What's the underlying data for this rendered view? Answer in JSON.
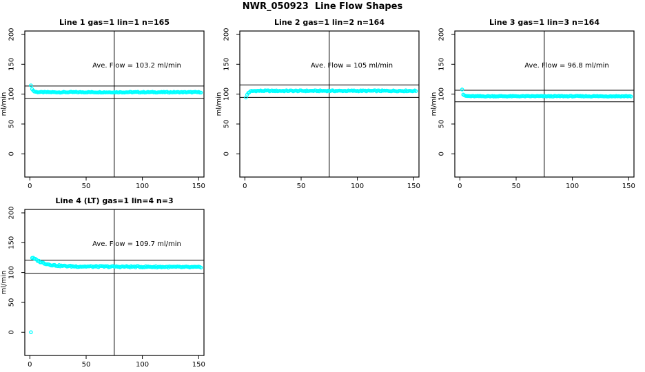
{
  "page_title": "NWR_050923  Line Flow Shapes",
  "colors": {
    "marker": "#00FFFF",
    "axis": "#000000",
    "background": "#FFFFFF"
  },
  "chart_data": [
    {
      "type": "scatter",
      "panel": "line1",
      "title": "Line 1 gas=1 lin=1 n=165",
      "annotation": "Ave. Flow =  103.2  ml/min",
      "ave_flow_ml_min": 103.2,
      "n": 165,
      "ylabel": "ml/min",
      "xticks": [
        0,
        50,
        100,
        150
      ],
      "yticks": [
        0,
        50,
        100,
        150,
        200
      ],
      "xlim": [
        -4.5,
        154.7
      ],
      "ylim": [
        -38.9,
        205.7
      ],
      "hlines": [
        113.5,
        92.9
      ],
      "vline": 75,
      "x_start": 1,
      "x_end": 152,
      "profile": [
        [
          1,
          114
        ],
        [
          2,
          109
        ],
        [
          3,
          106
        ],
        [
          4,
          104.5
        ],
        [
          6,
          103.5
        ],
        [
          10,
          103.2
        ],
        [
          152,
          103.2
        ]
      ],
      "jitter": 0.7,
      "outliers": []
    },
    {
      "type": "scatter",
      "panel": "line2",
      "title": "Line 2 gas=1 lin=2 n=164",
      "annotation": "Ave. Flow =  105  ml/min",
      "ave_flow_ml_min": 105,
      "n": 164,
      "ylabel": "ml/min",
      "xticks": [
        0,
        50,
        100,
        150
      ],
      "yticks": [
        0,
        50,
        100,
        150,
        200
      ],
      "xlim": [
        -4.5,
        154.7
      ],
      "ylim": [
        -38.9,
        205.7
      ],
      "hlines": [
        115.5,
        94.5
      ],
      "vline": 75,
      "x_start": 1,
      "x_end": 152,
      "profile": [
        [
          1,
          94
        ],
        [
          2,
          99
        ],
        [
          3,
          102
        ],
        [
          4,
          103.5
        ],
        [
          6,
          105
        ],
        [
          10,
          105.5
        ],
        [
          150,
          105.5
        ],
        [
          152,
          105.2
        ]
      ],
      "jitter": 0.9,
      "outliers": []
    },
    {
      "type": "scatter",
      "panel": "line3",
      "title": "Line 3 gas=1 lin=3 n=164",
      "annotation": "Ave. Flow =  96.8  ml/min",
      "ave_flow_ml_min": 96.8,
      "n": 164,
      "ylabel": "ml/min",
      "xticks": [
        0,
        50,
        100,
        150
      ],
      "yticks": [
        0,
        50,
        100,
        150,
        200
      ],
      "xlim": [
        -4.5,
        154.7
      ],
      "ylim": [
        -38.9,
        205.7
      ],
      "hlines": [
        106.5,
        87.1
      ],
      "vline": 75,
      "x_start": 2,
      "x_end": 152,
      "profile": [
        [
          2,
          108
        ],
        [
          3,
          99.5
        ],
        [
          4,
          97.5
        ],
        [
          6,
          96.8
        ],
        [
          10,
          96.5
        ],
        [
          152,
          96.5
        ]
      ],
      "jitter": 0.7,
      "outliers": []
    },
    {
      "type": "scatter",
      "panel": "line4",
      "title": "Line 4 (LT) gas=1 lin=4 n=3",
      "annotation": "Ave. Flow =  109.7  ml/min",
      "ave_flow_ml_min": 109.7,
      "n": 3,
      "ylabel": "ml/min",
      "xticks": [
        0,
        50,
        100,
        150
      ],
      "yticks": [
        0,
        50,
        100,
        150,
        200
      ],
      "xlim": [
        -4.5,
        154.7
      ],
      "ylim": [
        -38.9,
        205.7
      ],
      "hlines": [
        120.7,
        98.7
      ],
      "vline": 75,
      "x_start": 2,
      "x_end": 152,
      "profile": [
        [
          2,
          125
        ],
        [
          3,
          124
        ],
        [
          5,
          122
        ],
        [
          8,
          119
        ],
        [
          12,
          116
        ],
        [
          16,
          114
        ],
        [
          20,
          112.5
        ],
        [
          25,
          111.5
        ],
        [
          30,
          111
        ],
        [
          40,
          110.3
        ],
        [
          60,
          110
        ],
        [
          90,
          109.8
        ],
        [
          120,
          109.5
        ],
        [
          152,
          108.8
        ]
      ],
      "jitter": 1.1,
      "outliers": [
        [
          1,
          0
        ]
      ]
    }
  ]
}
